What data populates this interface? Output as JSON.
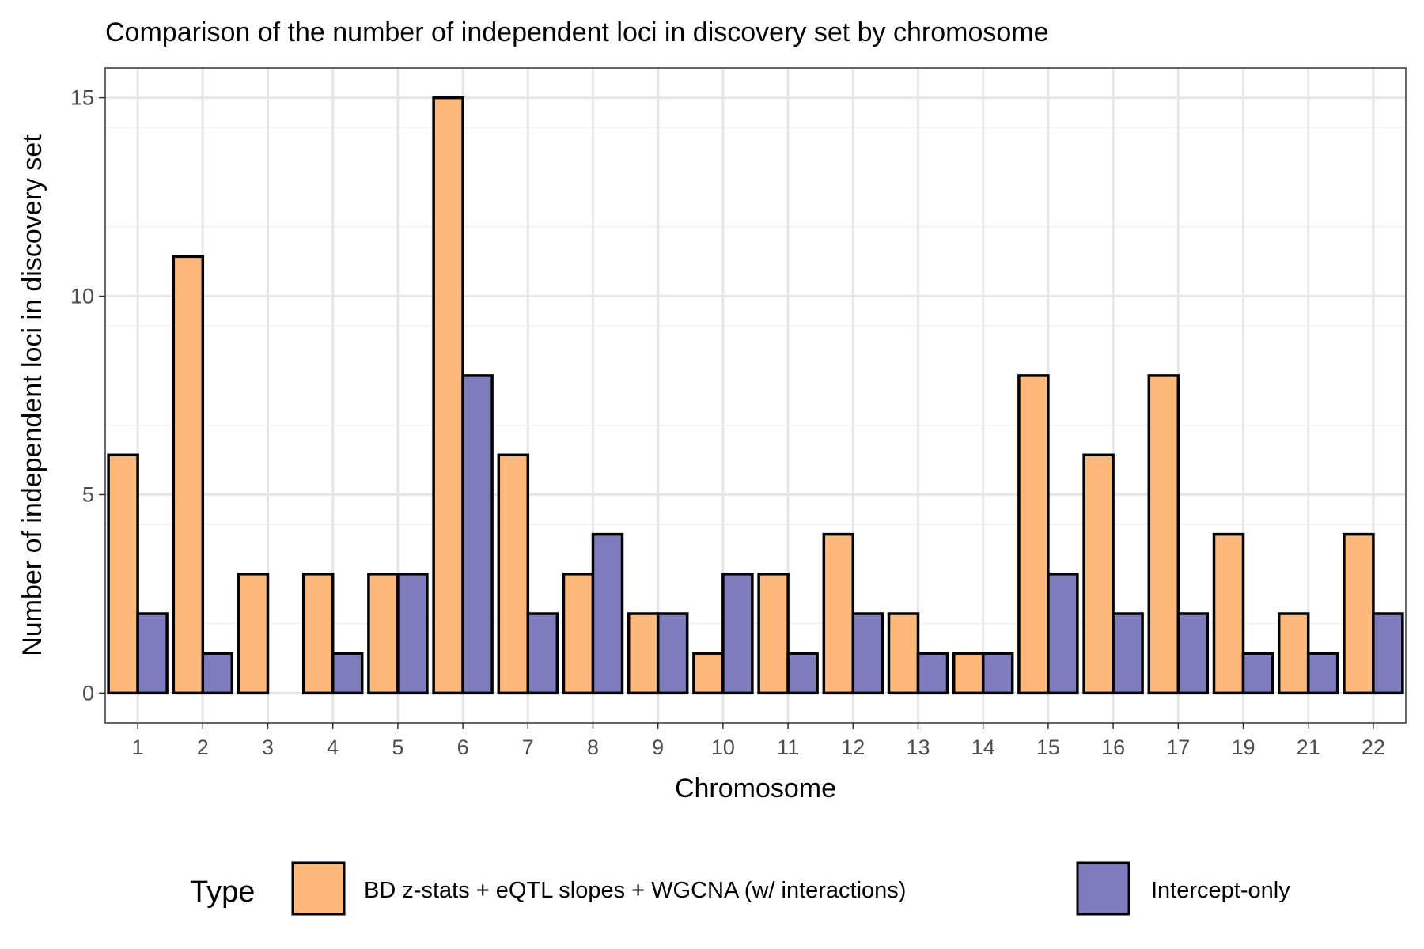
{
  "chart_data": {
    "type": "bar",
    "title": "Comparison of the number of independent loci in discovery set by chromosome",
    "xlabel": "Chromosome",
    "ylabel": "Number of independent loci in discovery set",
    "categories": [
      "1",
      "2",
      "3",
      "4",
      "5",
      "6",
      "7",
      "8",
      "9",
      "10",
      "11",
      "12",
      "13",
      "14",
      "15",
      "16",
      "17",
      "19",
      "21",
      "22"
    ],
    "series": [
      {
        "name": "BD z-stats + eQTL slopes + WGCNA (w/ interactions)",
        "color": "#fdb97c",
        "values": [
          6,
          11,
          3,
          3,
          3,
          15,
          6,
          3,
          2,
          1,
          3,
          4,
          2,
          1,
          8,
          6,
          8,
          4,
          2,
          4
        ]
      },
      {
        "name": "Intercept-only",
        "color": "#7e7cbb",
        "values": [
          2,
          1,
          0,
          1,
          3,
          8,
          2,
          4,
          2,
          3,
          1,
          2,
          1,
          1,
          3,
          2,
          2,
          1,
          1,
          2
        ]
      }
    ],
    "ylim": [
      -0.75,
      15.75
    ],
    "yticks": [
      0,
      5,
      10,
      15
    ],
    "grid": true,
    "legend": {
      "title": "Type",
      "position": "bottom"
    }
  }
}
